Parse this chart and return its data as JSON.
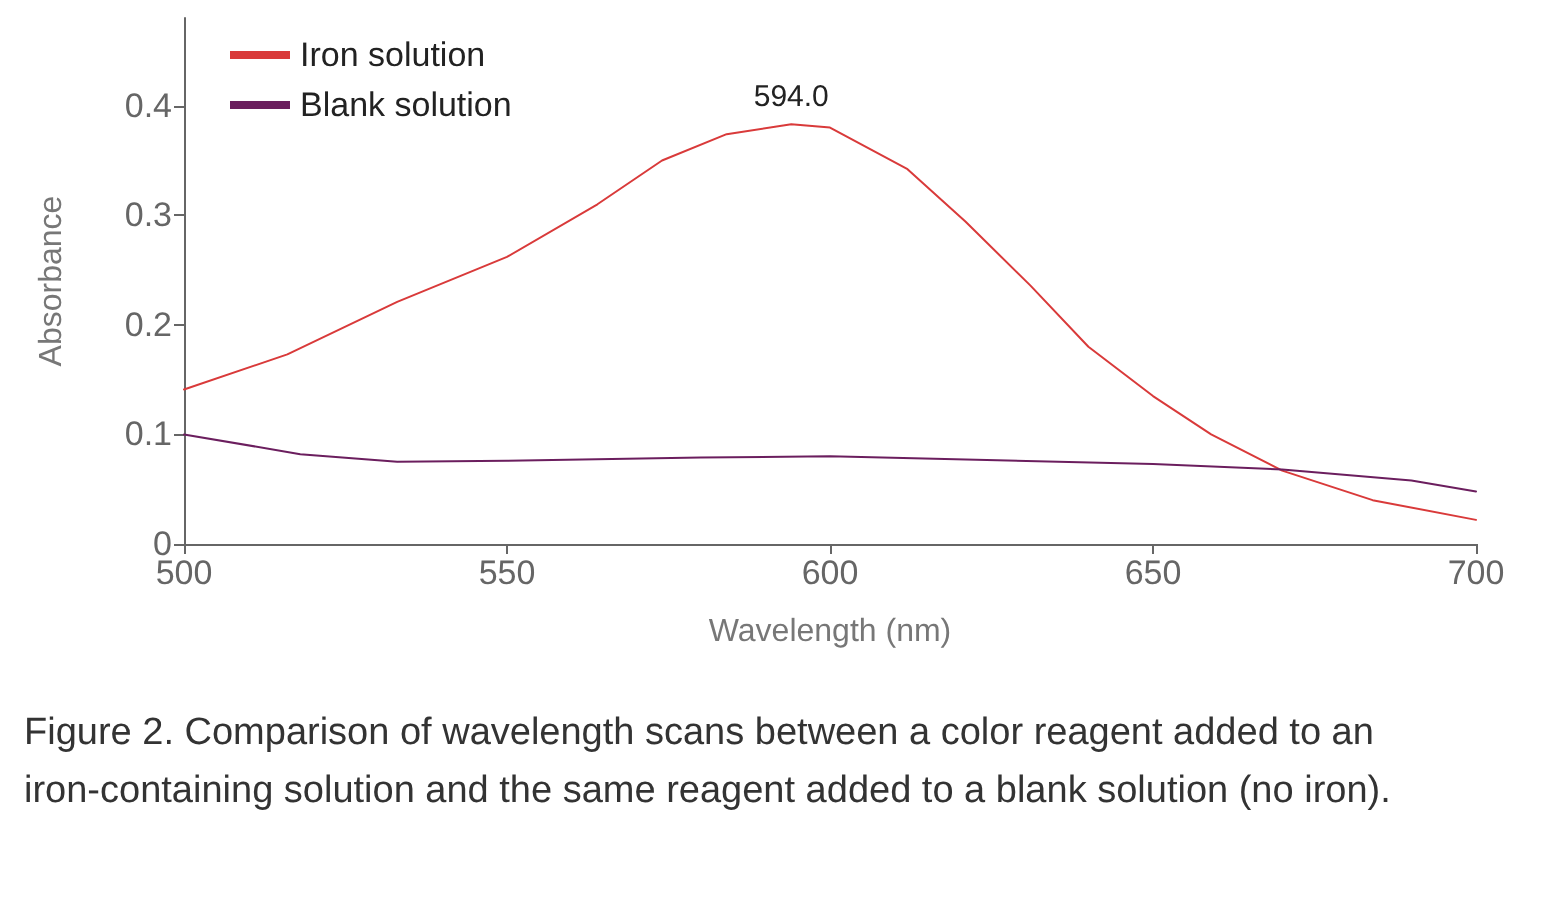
{
  "chart_data": {
    "type": "line",
    "xlabel": "Wavelength (nm)",
    "ylabel": "Absorbance",
    "xlim": [
      500,
      700
    ],
    "xticks": [
      500,
      550,
      600,
      650,
      700
    ],
    "ylim": [
      0,
      0.48
    ],
    "yticks": [
      0,
      0.1,
      0.2,
      0.3,
      0.4
    ],
    "grid": false,
    "legend": "top left",
    "marker": "none",
    "line_style": "solid",
    "x": [
      500,
      516,
      533,
      550,
      564,
      574,
      584,
      594,
      600,
      612,
      621,
      631,
      640,
      650,
      659,
      670,
      684,
      700
    ],
    "series": [
      {
        "name": "Iron solution",
        "color": "#d93a3a",
        "values": [
          0.141,
          0.173,
          0.221,
          0.262,
          0.31,
          0.35,
          0.374,
          0.383,
          0.38,
          0.342,
          0.294,
          0.236,
          0.18,
          0.135,
          0.1,
          0.067,
          0.04,
          0.022
        ]
      },
      {
        "name": "Blank solution",
        "color": "#6b1e5e",
        "x": [
          500,
          518,
          533,
          550,
          580,
          600,
          650,
          670,
          690,
          700
        ],
        "values": [
          0.1,
          0.082,
          0.075,
          0.076,
          0.079,
          0.08,
          0.073,
          0.068,
          0.058,
          0.048
        ]
      }
    ],
    "annotations": [
      {
        "text": "594.0",
        "x": 594,
        "y": 0.383
      },
      "Figure 2. Comparison of wavelength scans between a color reagent added to an iron-containing solution and the same reagent added to a blank solution (no iron)."
    ]
  }
}
